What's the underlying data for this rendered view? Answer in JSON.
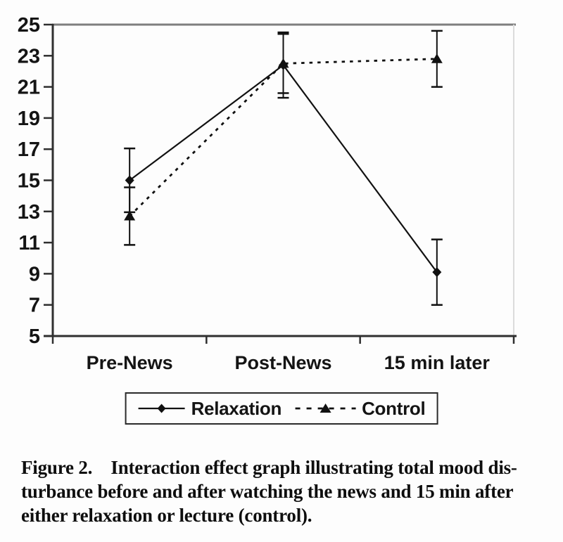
{
  "chart_data": {
    "type": "line",
    "title": "",
    "xlabel": "",
    "ylabel": "",
    "categories": [
      "Pre-News",
      "Post-News",
      "15 min later"
    ],
    "series": [
      {
        "name": "Relaxation",
        "marker": "diamond",
        "line_style": "solid",
        "values": [
          15.0,
          22.4,
          9.1
        ],
        "error_bars": [
          2.05,
          2.1,
          2.1
        ]
      },
      {
        "name": "Control",
        "marker": "triangle",
        "line_style": "dashed",
        "values": [
          12.7,
          22.5,
          22.8
        ],
        "error_bars": [
          1.85,
          1.9,
          1.8
        ]
      }
    ],
    "ylim": [
      5,
      25
    ],
    "ytick_step": 2,
    "grid": false,
    "legend_position": "bottom",
    "line_color": "#111111",
    "axis_color": "#2f2f2f",
    "top_border_color": "#7e7e7e",
    "right_border_color": "#dcdcdc"
  },
  "caption": {
    "lines": [
      "Figure 2.    Interaction effect graph illustrating total mood dis-",
      "turbance before and after watching the news and 15 min after",
      "either relaxation or lecture (control)."
    ]
  }
}
